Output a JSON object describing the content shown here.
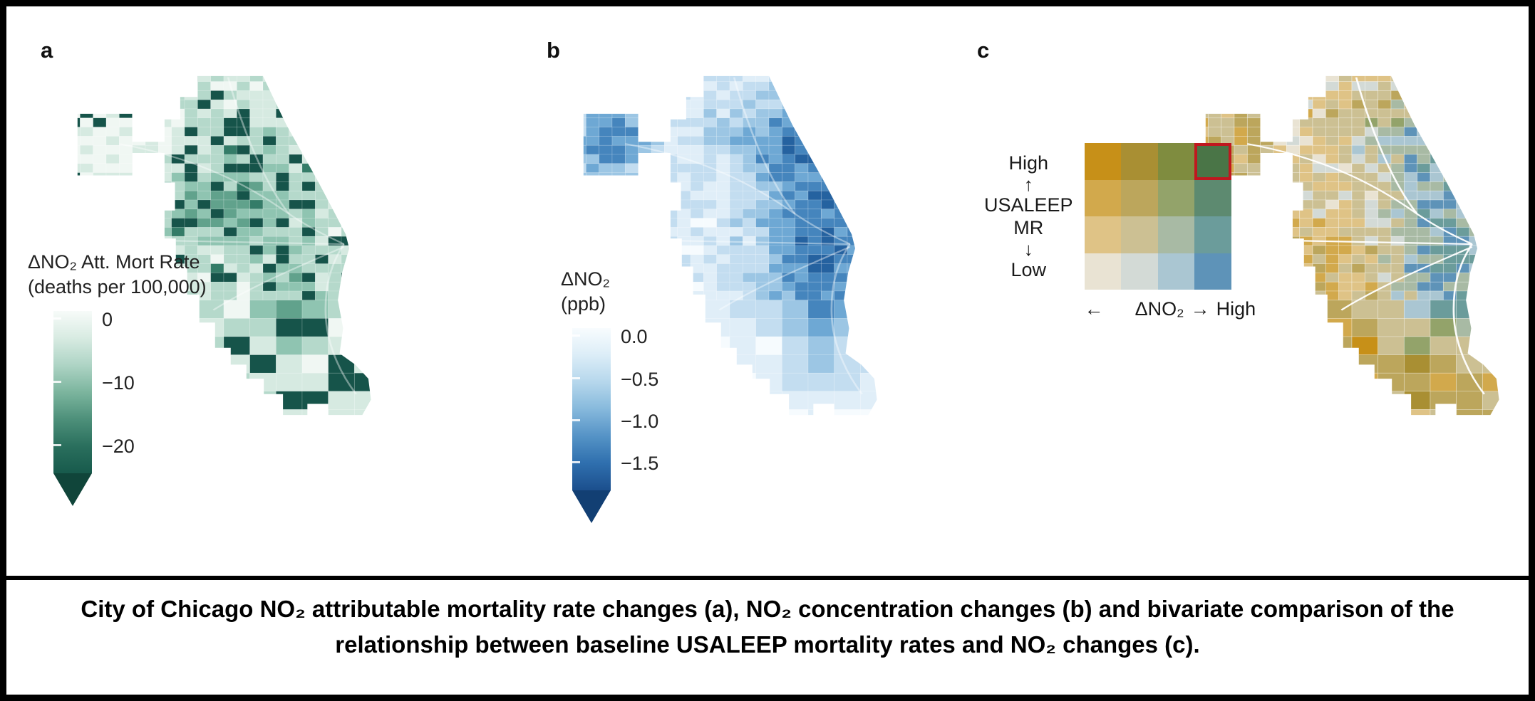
{
  "figure": {
    "border_color": "#000000",
    "background": "#ffffff",
    "caption": "City of Chicago NO₂ attributable mortality rate changes (a), NO₂ concentration changes (b) and bivariate comparison of the relationship between baseline USALEEP mortality rates and NO₂ changes (c)."
  },
  "panels": {
    "a": {
      "label": "a",
      "legend": {
        "title_line1": "ΔNO₂ Att. Mort Rate",
        "title_line2": "(deaths per 100,000)",
        "ticks": [
          "0",
          "−10",
          "−20"
        ],
        "gradient": [
          "#f7fbf9",
          "#d8ebe2",
          "#aed4c5",
          "#7cb59e",
          "#4d907a",
          "#2a6f5d",
          "#175a4c"
        ],
        "arrow_color": "#10453a"
      }
    },
    "b": {
      "label": "b",
      "legend": {
        "title_line1": "ΔNO₂",
        "title_line2": "(ppb)",
        "ticks": [
          "0.0",
          "−0.5",
          "−1.0",
          "−1.5"
        ],
        "gradient": [
          "#f8fcfe",
          "#dcedf7",
          "#b6d7ec",
          "#86b9dc",
          "#5593c6",
          "#2f6fae",
          "#1b4f8d"
        ],
        "arrow_color": "#123f73"
      }
    },
    "c": {
      "label": "c",
      "legend": {
        "y_top": "High",
        "y_arrow_up": "↑",
        "y_title1": "USALEEP",
        "y_title2": "MR",
        "y_arrow_down": "↓",
        "y_bottom": "Low",
        "x_arrow_left": "←",
        "x_label": "ΔNO₂",
        "x_arrow_right": "→",
        "x_high": "High",
        "matrix": [
          [
            "#c79018",
            "#a98f33",
            "#7f8c3f",
            "#4a7547"
          ],
          [
            "#d2a94c",
            "#bca65c",
            "#93a36a",
            "#5d8a70"
          ],
          [
            "#dfc386",
            "#ccc093",
            "#a8baa4",
            "#6b9c9b"
          ],
          [
            "#e9e3d3",
            "#d3dad6",
            "#aac6d2",
            "#5e93b8"
          ]
        ],
        "highlight": {
          "row": 0,
          "col": 3,
          "color": "#c0181f"
        }
      }
    }
  },
  "map": {
    "region": "City of Chicago",
    "palette_a": [
      "#f0f7f3",
      "#d6eae1",
      "#b5d9cb",
      "#8fc4b1",
      "#61a28c",
      "#347c68",
      "#16544a"
    ],
    "palette_b": [
      "#f6fbfe",
      "#e0eef8",
      "#c3ddf0",
      "#9cc6e4",
      "#6ea8d4",
      "#4585bd",
      "#2562a0",
      "#14406f"
    ],
    "road_color": "#ffffff"
  },
  "chart_data": [
    {
      "type": "choropleth-map",
      "panel": "a",
      "region": "City of Chicago",
      "variable": "ΔNO₂ Att. Mort Rate",
      "unit": "deaths per 100,000",
      "colorbar_ticks": [
        0,
        -10,
        -20
      ]
    },
    {
      "type": "choropleth-map",
      "panel": "b",
      "region": "City of Chicago",
      "variable": "ΔNO₂",
      "unit": "ppb",
      "colorbar_ticks": [
        0.0,
        -0.5,
        -1.0,
        -1.5
      ]
    },
    {
      "type": "bivariate-choropleth-map",
      "panel": "c",
      "region": "City of Chicago",
      "x_axis": "ΔNO₂ (← Low to High →)",
      "y_axis": "USALEEP MR (Low to High)",
      "grid": "4×4",
      "highlighted_class": "High USALEEP MR / High ΔNO₂"
    }
  ]
}
